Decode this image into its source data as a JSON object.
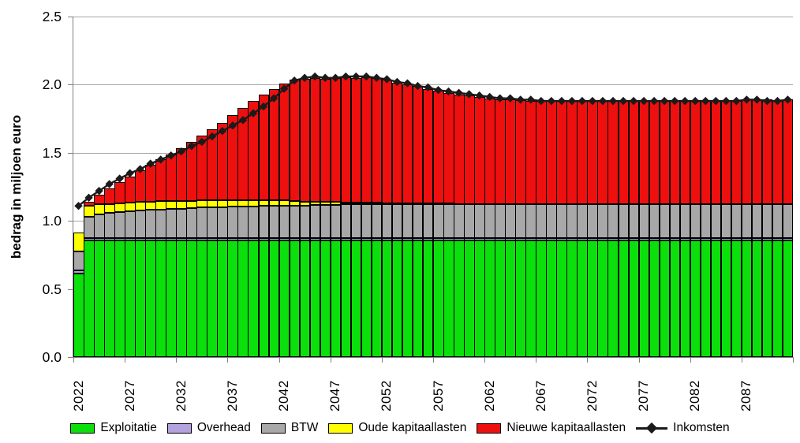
{
  "chart_data": {
    "type": "bar",
    "subtype": "stacked-bar-with-line",
    "title": "",
    "xlabel": "",
    "ylabel": "bedrag in miljoen euro",
    "ylim": [
      0,
      2.5
    ],
    "grid": "horizontal",
    "legend_position": "bottom",
    "y_ticks": [
      0,
      0.5,
      1.0,
      1.5,
      2.0,
      2.5
    ],
    "y_tick_labels": [
      "0.0",
      "0.5",
      "1.0",
      "1.5",
      "2.0",
      "2.5"
    ],
    "x_tick_years": [
      2022,
      2027,
      2032,
      2037,
      2042,
      2047,
      2052,
      2057,
      2062,
      2067,
      2072,
      2077,
      2082,
      2087
    ],
    "x_tick_labels": [
      "2022",
      "2027",
      "2032",
      "2037",
      "2042",
      "2047",
      "2052",
      "2057",
      "2062",
      "2067",
      "2072",
      "2077",
      "2082",
      "2087"
    ],
    "years": [
      2022,
      2023,
      2024,
      2025,
      2026,
      2027,
      2028,
      2029,
      2030,
      2031,
      2032,
      2033,
      2034,
      2035,
      2036,
      2037,
      2038,
      2039,
      2040,
      2041,
      2042,
      2043,
      2044,
      2045,
      2046,
      2047,
      2048,
      2049,
      2050,
      2051,
      2052,
      2053,
      2054,
      2055,
      2056,
      2057,
      2058,
      2059,
      2060,
      2061,
      2062,
      2063,
      2064,
      2065,
      2066,
      2067,
      2068,
      2069,
      2070,
      2071,
      2072,
      2073,
      2074,
      2075,
      2076,
      2077,
      2078,
      2079,
      2080,
      2081,
      2082,
      2083,
      2084,
      2085,
      2086,
      2087,
      2088,
      2089,
      2090,
      2091
    ],
    "series": [
      {
        "name": "Exploitatie",
        "type": "bar",
        "color": "#0ce00c",
        "values": [
          0.615,
          0.855,
          0.855,
          0.855,
          0.855,
          0.855,
          0.855,
          0.855,
          0.855,
          0.855,
          0.855,
          0.855,
          0.855,
          0.855,
          0.855,
          0.855,
          0.855,
          0.855,
          0.855,
          0.855,
          0.855,
          0.855,
          0.855,
          0.855,
          0.855,
          0.855,
          0.855,
          0.855,
          0.855,
          0.855,
          0.855,
          0.855,
          0.855,
          0.855,
          0.855,
          0.855,
          0.855,
          0.855,
          0.855,
          0.855,
          0.855,
          0.855,
          0.855,
          0.855,
          0.855,
          0.855,
          0.855,
          0.855,
          0.855,
          0.855,
          0.855,
          0.855,
          0.855,
          0.855,
          0.855,
          0.855,
          0.855,
          0.855,
          0.855,
          0.855,
          0.855,
          0.855,
          0.855,
          0.855,
          0.855,
          0.855,
          0.855,
          0.855,
          0.855,
          0.855
        ]
      },
      {
        "name": "Overhead",
        "type": "bar",
        "color": "#b3a2dd",
        "values": [
          0.02,
          0.02,
          0.02,
          0.02,
          0.02,
          0.02,
          0.02,
          0.02,
          0.02,
          0.02,
          0.02,
          0.02,
          0.02,
          0.02,
          0.02,
          0.02,
          0.02,
          0.02,
          0.02,
          0.02,
          0.02,
          0.02,
          0.02,
          0.02,
          0.02,
          0.02,
          0.02,
          0.02,
          0.02,
          0.02,
          0.02,
          0.02,
          0.02,
          0.02,
          0.02,
          0.02,
          0.02,
          0.02,
          0.02,
          0.02,
          0.02,
          0.02,
          0.02,
          0.02,
          0.02,
          0.02,
          0.02,
          0.02,
          0.02,
          0.02,
          0.02,
          0.02,
          0.02,
          0.02,
          0.02,
          0.02,
          0.02,
          0.02,
          0.02,
          0.02,
          0.02,
          0.02,
          0.02,
          0.02,
          0.02,
          0.02,
          0.02,
          0.02,
          0.02,
          0.02
        ]
      },
      {
        "name": "BTW",
        "type": "bar",
        "color": "#a8a8a8",
        "values": [
          0.14,
          0.155,
          0.175,
          0.185,
          0.19,
          0.195,
          0.2,
          0.205,
          0.21,
          0.212,
          0.215,
          0.218,
          0.222,
          0.225,
          0.225,
          0.228,
          0.23,
          0.232,
          0.235,
          0.235,
          0.235,
          0.235,
          0.238,
          0.24,
          0.24,
          0.243,
          0.245,
          0.245,
          0.245,
          0.245,
          0.245,
          0.245,
          0.245,
          0.245,
          0.245,
          0.245,
          0.245,
          0.245,
          0.245,
          0.245,
          0.245,
          0.245,
          0.245,
          0.245,
          0.245,
          0.245,
          0.245,
          0.245,
          0.245,
          0.245,
          0.245,
          0.245,
          0.245,
          0.245,
          0.245,
          0.245,
          0.245,
          0.245,
          0.245,
          0.245,
          0.245,
          0.245,
          0.245,
          0.245,
          0.245,
          0.245,
          0.245,
          0.245,
          0.245,
          0.245
        ]
      },
      {
        "name": "Oude kapitaallasten",
        "type": "bar",
        "color": "#ffff00",
        "values": [
          0.14,
          0.08,
          0.07,
          0.065,
          0.065,
          0.065,
          0.065,
          0.06,
          0.06,
          0.058,
          0.058,
          0.055,
          0.052,
          0.05,
          0.05,
          0.047,
          0.045,
          0.043,
          0.04,
          0.04,
          0.04,
          0.035,
          0.03,
          0.025,
          0.025,
          0.02,
          0.015,
          0.015,
          0.012,
          0.012,
          0.01,
          0.01,
          0.01,
          0.008,
          0.008,
          0.006,
          0.006,
          0.005,
          0.005,
          0.004,
          0.004,
          0.003,
          0.002,
          0,
          0,
          0,
          0,
          0,
          0,
          0,
          0,
          0,
          0,
          0,
          0,
          0,
          0,
          0,
          0,
          0,
          0,
          0,
          0,
          0,
          0,
          0,
          0,
          0,
          0,
          0
        ]
      },
      {
        "name": "Nieuwe kapitaallasten",
        "type": "bar",
        "color": "#ee0f0f",
        "values": [
          0,
          0.03,
          0.07,
          0.115,
          0.155,
          0.19,
          0.23,
          0.27,
          0.305,
          0.345,
          0.385,
          0.43,
          0.48,
          0.525,
          0.57,
          0.625,
          0.68,
          0.73,
          0.775,
          0.82,
          0.86,
          0.895,
          0.9,
          0.91,
          0.905,
          0.912,
          0.92,
          0.915,
          0.923,
          0.918,
          0.905,
          0.885,
          0.87,
          0.862,
          0.842,
          0.829,
          0.814,
          0.805,
          0.795,
          0.786,
          0.776,
          0.772,
          0.768,
          0.765,
          0.76,
          0.76,
          0.76,
          0.76,
          0.76,
          0.76,
          0.76,
          0.76,
          0.76,
          0.76,
          0.76,
          0.76,
          0.76,
          0.76,
          0.76,
          0.76,
          0.76,
          0.76,
          0.76,
          0.76,
          0.76,
          0.77,
          0.775,
          0.775,
          0.76,
          0.77
        ]
      },
      {
        "name": "Inkomsten",
        "type": "line",
        "marker": "diamond",
        "color": "#1a1a1a",
        "values": [
          1.11,
          1.17,
          1.22,
          1.27,
          1.31,
          1.35,
          1.38,
          1.42,
          1.45,
          1.48,
          1.51,
          1.55,
          1.58,
          1.62,
          1.66,
          1.7,
          1.74,
          1.79,
          1.84,
          1.9,
          1.97,
          2.03,
          2.05,
          2.06,
          2.05,
          2.05,
          2.06,
          2.06,
          2.06,
          2.05,
          2.04,
          2.02,
          2.01,
          1.99,
          1.98,
          1.96,
          1.95,
          1.94,
          1.93,
          1.92,
          1.91,
          1.9,
          1.9,
          1.89,
          1.89,
          1.88,
          1.88,
          1.88,
          1.88,
          1.88,
          1.88,
          1.88,
          1.88,
          1.88,
          1.88,
          1.88,
          1.88,
          1.88,
          1.88,
          1.88,
          1.88,
          1.88,
          1.88,
          1.88,
          1.88,
          1.89,
          1.89,
          1.88,
          1.88,
          1.89
        ]
      }
    ],
    "colors": {
      "gridline": "#a6a6a6",
      "axis": "#808080",
      "text": "#000000"
    }
  }
}
